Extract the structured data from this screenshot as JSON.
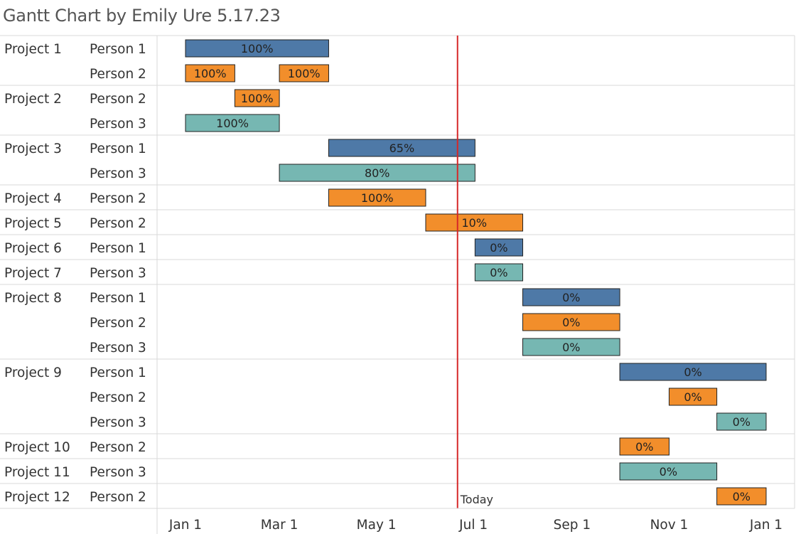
{
  "title": "Gantt Chart by Emily Ure 5.17.23",
  "colors": {
    "Person 1": "#4e79a7",
    "Person 2": "#f28e2b",
    "Person 3": "#76b7b2",
    "today_line": "#d62728",
    "grid": "#d9d9d9"
  },
  "chart_data": {
    "type": "gantt",
    "x_ticks": [
      {
        "date": "2023-01-01",
        "label": "Jan 1"
      },
      {
        "date": "2023-03-01",
        "label": "Mar 1"
      },
      {
        "date": "2023-05-01",
        "label": "May 1"
      },
      {
        "date": "2023-07-01",
        "label": "Jul 1"
      },
      {
        "date": "2023-09-01",
        "label": "Sep 1"
      },
      {
        "date": "2023-11-01",
        "label": "Nov 1"
      },
      {
        "date": "2024-01-01",
        "label": "Jan 1"
      }
    ],
    "xlim": [
      "2022-12-15",
      "2024-01-12"
    ],
    "today": {
      "date": "2023-06-21",
      "label": "Today"
    },
    "projects": [
      {
        "project": "Project 1",
        "rows": [
          {
            "person": "Person 1",
            "tasks": [
              {
                "start": "2023-01-01",
                "end": "2023-03-31",
                "label": "100%"
              }
            ]
          },
          {
            "person": "Person 2",
            "tasks": [
              {
                "start": "2023-01-01",
                "end": "2023-01-31",
                "label": "100%"
              },
              {
                "start": "2023-03-01",
                "end": "2023-03-31",
                "label": "100%"
              }
            ]
          }
        ]
      },
      {
        "project": "Project 2",
        "rows": [
          {
            "person": "Person 2",
            "tasks": [
              {
                "start": "2023-02-01",
                "end": "2023-02-28",
                "label": "100%"
              }
            ]
          },
          {
            "person": "Person 3",
            "tasks": [
              {
                "start": "2023-01-01",
                "end": "2023-02-28",
                "label": "100%"
              }
            ]
          }
        ]
      },
      {
        "project": "Project 3",
        "rows": [
          {
            "person": "Person 1",
            "tasks": [
              {
                "start": "2023-04-01",
                "end": "2023-07-01",
                "label": "65%"
              }
            ]
          },
          {
            "person": "Person 3",
            "tasks": [
              {
                "start": "2023-03-01",
                "end": "2023-07-01",
                "label": "80%"
              }
            ]
          }
        ]
      },
      {
        "project": "Project 4",
        "rows": [
          {
            "person": "Person 2",
            "tasks": [
              {
                "start": "2023-04-01",
                "end": "2023-05-31",
                "label": "100%"
              }
            ]
          }
        ]
      },
      {
        "project": "Project 5",
        "rows": [
          {
            "person": "Person 2",
            "tasks": [
              {
                "start": "2023-06-01",
                "end": "2023-07-31",
                "label": "10%"
              }
            ]
          }
        ]
      },
      {
        "project": "Project 6",
        "rows": [
          {
            "person": "Person 1",
            "tasks": [
              {
                "start": "2023-07-02",
                "end": "2023-07-31",
                "label": "0%"
              }
            ]
          }
        ]
      },
      {
        "project": "Project 7",
        "rows": [
          {
            "person": "Person 3",
            "tasks": [
              {
                "start": "2023-07-02",
                "end": "2023-07-31",
                "label": "0%"
              }
            ]
          }
        ]
      },
      {
        "project": "Project 8",
        "rows": [
          {
            "person": "Person 1",
            "tasks": [
              {
                "start": "2023-08-01",
                "end": "2023-09-30",
                "label": "0%"
              }
            ]
          },
          {
            "person": "Person 2",
            "tasks": [
              {
                "start": "2023-08-01",
                "end": "2023-09-30",
                "label": "0%"
              }
            ]
          },
          {
            "person": "Person 3",
            "tasks": [
              {
                "start": "2023-08-01",
                "end": "2023-09-30",
                "label": "0%"
              }
            ]
          }
        ]
      },
      {
        "project": "Project 9",
        "rows": [
          {
            "person": "Person 1",
            "tasks": [
              {
                "start": "2023-10-01",
                "end": "2023-12-31",
                "label": "0%"
              }
            ]
          },
          {
            "person": "Person 2",
            "tasks": [
              {
                "start": "2023-11-01",
                "end": "2023-11-30",
                "label": "0%"
              }
            ]
          },
          {
            "person": "Person 3",
            "tasks": [
              {
                "start": "2023-12-01",
                "end": "2023-12-31",
                "label": "0%"
              }
            ]
          }
        ]
      },
      {
        "project": "Project 10",
        "rows": [
          {
            "person": "Person 2",
            "tasks": [
              {
                "start": "2023-10-01",
                "end": "2023-10-31",
                "label": "0%"
              }
            ]
          }
        ]
      },
      {
        "project": "Project 11",
        "rows": [
          {
            "person": "Person 3",
            "tasks": [
              {
                "start": "2023-10-01",
                "end": "2023-11-30",
                "label": "0%"
              }
            ]
          }
        ]
      },
      {
        "project": "Project 12",
        "rows": [
          {
            "person": "Person 2",
            "tasks": [
              {
                "start": "2023-12-01",
                "end": "2023-12-31",
                "label": "0%"
              }
            ]
          }
        ]
      }
    ]
  }
}
